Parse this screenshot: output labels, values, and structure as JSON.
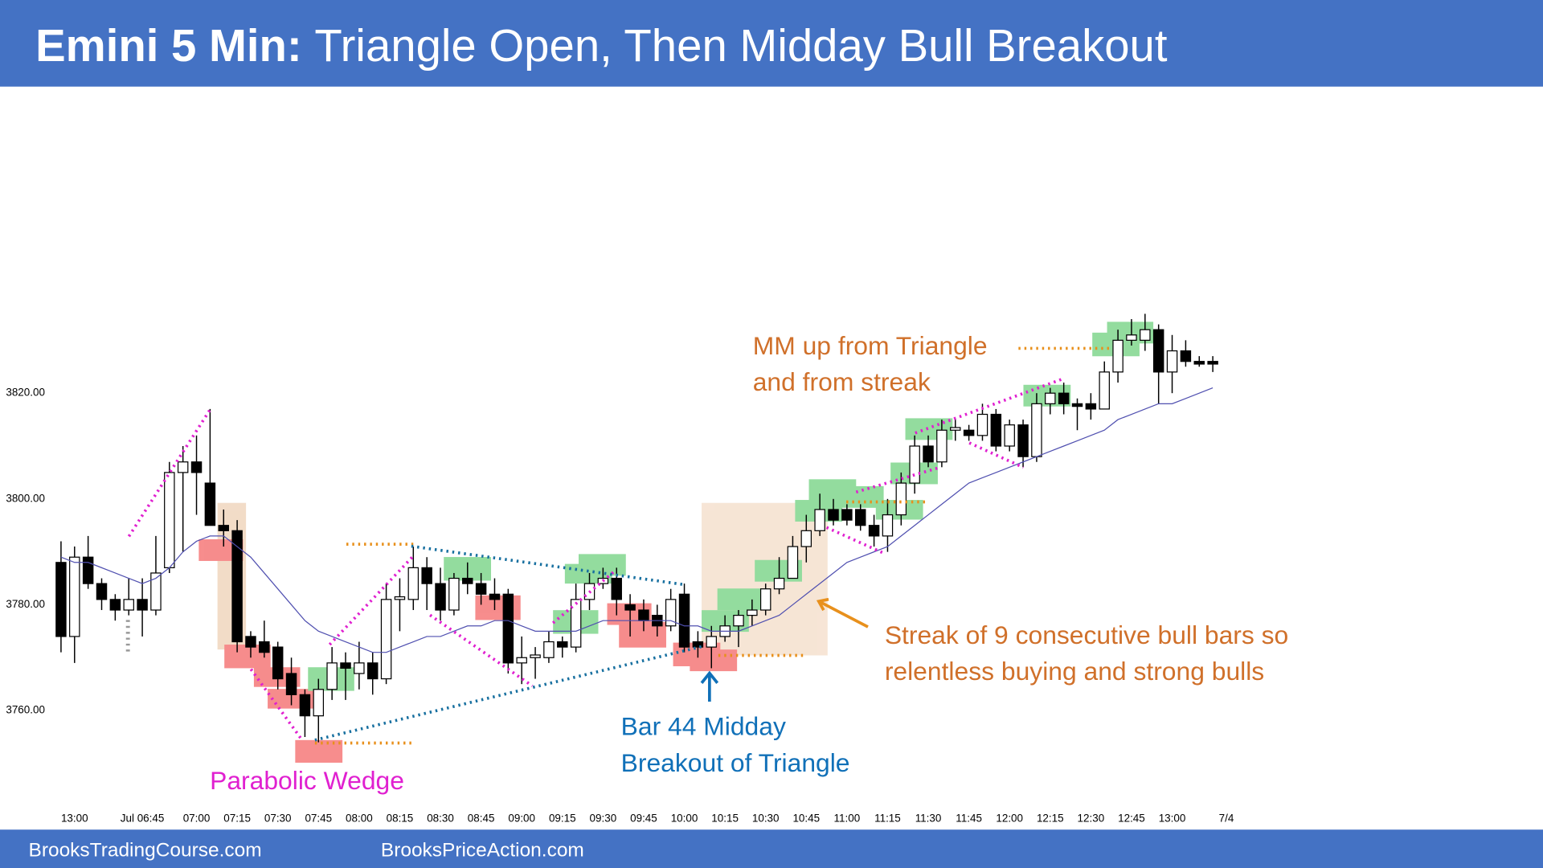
{
  "header": {
    "title_bold": "Emini 5 Min:",
    "title": "Triangle Open, Then Midday Bull Breakout"
  },
  "footer": {
    "links": [
      "BrooksTradingCourse.com",
      "BrooksPriceAction.com"
    ]
  },
  "chart_data": {
    "type": "candlestick",
    "annotations": [
      {
        "lines": [
          "Parabolic Wedge"
        ]
      },
      {
        "lines": [
          "Bar 44 Midday",
          "Breakout of Triangle"
        ]
      },
      {
        "lines": [
          "MM up from Triangle",
          "and from streak"
        ]
      },
      {
        "lines": [
          "Streak of 9 consecutive bull bars so",
          "relentless buying and strong bulls"
        ]
      }
    ],
    "categories": [
      null,
      "13:00",
      null,
      null,
      null,
      null,
      "Jul 06:45",
      null,
      null,
      null,
      "07:00",
      null,
      null,
      "07:15",
      null,
      null,
      "07:30",
      null,
      null,
      "07:45",
      null,
      null,
      "08:00",
      null,
      null,
      "08:15",
      null,
      null,
      "08:30",
      null,
      null,
      "08:45",
      null,
      null,
      "09:00",
      null,
      null,
      "09:15",
      null,
      null,
      "09:30",
      null,
      null,
      "09:45",
      null,
      null,
      "10:00",
      null,
      null,
      "10:15",
      null,
      null,
      "10:30",
      null,
      null,
      "10:45",
      null,
      null,
      "11:00",
      null,
      null,
      "11:15",
      null,
      null,
      "11:30",
      null,
      null,
      "11:45",
      null,
      null,
      "12:00",
      null,
      null,
      "12:15",
      null,
      null,
      "12:30",
      null,
      null,
      "12:45",
      null,
      null,
      "13:00",
      null,
      null,
      null,
      "7/4"
    ],
    "open": [
      3788,
      3774,
      3789,
      3784,
      3781,
      3779,
      3781,
      3779,
      3787,
      3805,
      3807,
      3803,
      3795,
      3794,
      3774,
      3773,
      3772,
      3767,
      3763,
      3759,
      3764,
      3769,
      3767,
      3769,
      3766,
      3781,
      3781,
      3787,
      3784,
      3779,
      3785,
      3784,
      3782,
      3782,
      3769,
      3770,
      3770,
      3773,
      3772,
      3781,
      3784,
      3785,
      3780,
      3779,
      3778,
      3776,
      3782,
      3773,
      3772,
      3774,
      3776,
      3778,
      3779,
      3783,
      3785,
      3791,
      3794,
      3798,
      3798,
      3798,
      3795,
      3793,
      3797,
      3803,
      3810,
      3807,
      3813,
      3813,
      3812,
      3816,
      3810,
      3814,
      3808,
      3818,
      3820,
      3818,
      3818,
      3817,
      3824,
      3830,
      3830,
      3832,
      3824,
      3828,
      3826,
      3826,
      null
    ],
    "high": [
      3792,
      3791,
      3793,
      3785,
      3782,
      3785,
      3785,
      3793,
      3807,
      3810,
      3812,
      3817,
      3798,
      3796,
      3775,
      3777,
      3773,
      3770,
      3764,
      3766,
      3772,
      3771,
      3773,
      3771,
      3784,
      3785,
      3791,
      3789,
      3787,
      3786,
      3788,
      3786,
      3785,
      3783,
      3774,
      3772,
      3775,
      3774,
      3784,
      3786,
      3787,
      3787,
      3782,
      3781,
      3780,
      3783,
      3784,
      3775,
      3776,
      3778,
      3779,
      3781,
      3784,
      3789,
      3793,
      3797,
      3801,
      3800,
      3799,
      3799,
      3797,
      3800,
      3805,
      3812,
      3812,
      3815,
      3815,
      3814,
      3818,
      3817,
      3815,
      3815,
      3820,
      3821,
      3822,
      3819,
      3820,
      3826,
      3832,
      3834,
      3835,
      3833,
      3831,
      3830,
      3827,
      3827,
      null
    ],
    "low": [
      3771,
      3769,
      3783,
      3779,
      3777,
      3778,
      3774,
      3778,
      3786,
      3790,
      3797,
      3795,
      3791,
      3771,
      3770,
      3770,
      3764,
      3761,
      3755,
      3754,
      3762,
      3762,
      3764,
      3763,
      3765,
      3775,
      3779,
      3779,
      3777,
      3778,
      3782,
      3780,
      3779,
      3767,
      3765,
      3766,
      3769,
      3770,
      3771,
      3779,
      3783,
      3778,
      3774,
      3775,
      3774,
      3775,
      3771,
      3770,
      3768,
      3773,
      3772,
      3776,
      3778,
      3782,
      3785,
      3788,
      3793,
      3795,
      3795,
      3794,
      3791,
      3790,
      3795,
      3801,
      3806,
      3806,
      3811,
      3811,
      3811,
      3809,
      3809,
      3806,
      3807,
      3816,
      3816,
      3813,
      3815,
      3817,
      3822,
      3829,
      3828,
      3818,
      3820,
      3825,
      3825,
      3824,
      null
    ],
    "close": [
      3774,
      3789,
      3784,
      3781,
      3779,
      3781,
      3779,
      3786,
      3805,
      3807,
      3805,
      3795,
      3794,
      3773,
      3772,
      3771,
      3766,
      3763,
      3759,
      3764,
      3769,
      3768,
      3769,
      3766,
      3781,
      3781.5,
      3787,
      3784,
      3779,
      3785,
      3784,
      3782,
      3781,
      3769,
      3770,
      3770.5,
      3773,
      3772,
      3781,
      3784,
      3785,
      3781,
      3779,
      3777,
      3776,
      3781,
      3772,
      3772,
      3774,
      3776,
      3778,
      3779,
      3783,
      3785,
      3791,
      3794,
      3798,
      3796,
      3796,
      3795,
      3793,
      3797,
      3803,
      3810,
      3807,
      3813,
      3813.5,
      3812,
      3816,
      3810,
      3814,
      3808,
      3818,
      3820,
      3818,
      3817.5,
      3817,
      3824,
      3830,
      3831,
      3832,
      3824,
      3828,
      3826,
      3825.5,
      3825.5,
      null
    ],
    "ma_values": [
      3789,
      3788,
      3788,
      3787,
      3786,
      3785,
      3784,
      3785,
      3787,
      3790,
      3792,
      3793,
      3793,
      3791,
      3789,
      3786,
      3783,
      3780,
      3777,
      3775,
      3774,
      3773,
      3772,
      3771,
      3771,
      3772,
      3773,
      3774,
      3774,
      3775,
      3776,
      3776,
      3777,
      3777,
      3776,
      3775,
      3775,
      3775,
      3775,
      3776,
      3777,
      3777,
      3777,
      3777,
      3777,
      3777,
      3776,
      3776,
      3775,
      3775,
      3775,
      3776,
      3777,
      3778,
      3780,
      3782,
      3784,
      3786,
      3788,
      3789,
      3790,
      3791,
      3793,
      3795,
      3797,
      3799,
      3801,
      3803,
      3804,
      3805,
      3806,
      3807,
      3808,
      3809,
      3810,
      3811,
      3812,
      3813,
      3815,
      3816,
      3817,
      3818,
      3818,
      3819,
      3820,
      3821,
      null
    ],
    "ma_color": "#5050b0",
    "up_color": "#ffffff",
    "down_color": "#000000",
    "ylim": [
      3740,
      3875
    ],
    "yticks": [
      {
        "value": 3760,
        "label": "3760.00"
      },
      {
        "value": 3780,
        "label": "3780.00"
      },
      {
        "value": 3800,
        "label": "3800.00"
      },
      {
        "value": 3820,
        "label": "3820.00"
      }
    ]
  }
}
